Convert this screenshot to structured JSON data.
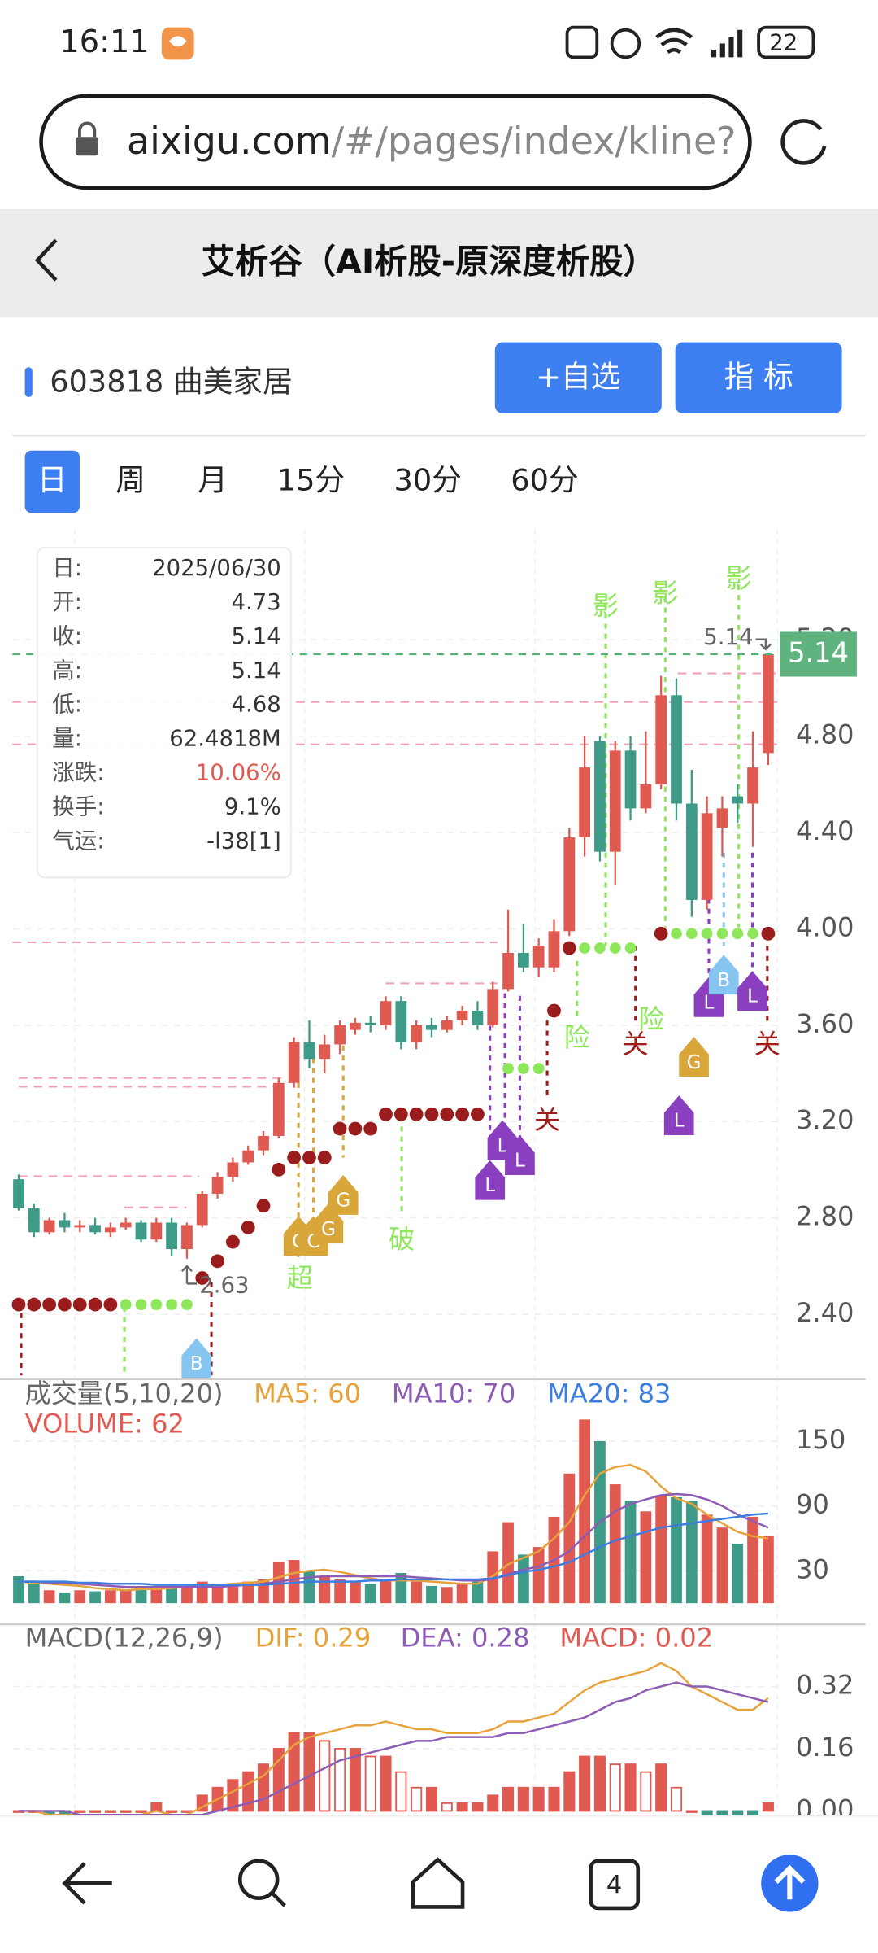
{
  "status_bar": {
    "time": "16:11",
    "battery": "22"
  },
  "browser": {
    "url_host": "aixigu.com",
    "url_path": "/#/pages/index/kline?",
    "tab_count": "4"
  },
  "header": {
    "title": "艾析谷（AI析股-原深度析股）"
  },
  "stock": {
    "name": "603818 曲美家居",
    "buttons": [
      "+自选",
      "指 标"
    ]
  },
  "periods": {
    "items": [
      "日",
      "周",
      "月",
      "15分",
      "30分",
      "60分"
    ]
  },
  "tooltip": {
    "rows": [
      {
        "label": "日:",
        "value": "2025/06/30"
      },
      {
        "label": "开:",
        "value": "4.73"
      },
      {
        "label": "收:",
        "value": "5.14"
      },
      {
        "label": "高:",
        "value": "5.14"
      },
      {
        "label": "低:",
        "value": "4.68"
      },
      {
        "label": "量:",
        "value": "62.4818M"
      },
      {
        "label": "涨跌:",
        "value": "10.06%"
      },
      {
        "label": "换手:",
        "value": "9.1%"
      },
      {
        "label": "气运:",
        "value": "-l38[1]"
      }
    ]
  },
  "chart_data": [
    {
      "type": "candlestick",
      "up_color": "#e05a52",
      "down_color": "#3d9b87",
      "open": [
        2.96,
        2.84,
        2.74,
        2.79,
        2.76,
        2.77,
        2.74,
        2.76,
        2.78,
        2.71,
        2.78,
        2.67,
        2.77,
        2.9,
        2.97,
        3.03,
        3.08,
        3.14,
        3.36,
        3.53,
        3.46,
        3.52,
        3.58,
        3.61,
        3.6,
        3.7,
        3.53,
        3.6,
        3.58,
        3.62,
        3.66,
        3.6,
        3.75,
        3.9,
        3.84,
        3.84,
        3.99,
        4.38,
        4.78,
        4.32,
        4.74,
        4.5,
        4.6,
        4.97,
        4.52,
        4.12,
        4.42,
        4.55,
        4.52,
        4.73
      ],
      "high": [
        2.98,
        2.86,
        2.8,
        2.82,
        2.79,
        2.8,
        2.78,
        2.8,
        2.79,
        2.8,
        2.8,
        2.78,
        2.91,
        2.99,
        3.05,
        3.1,
        3.16,
        3.38,
        3.55,
        3.62,
        3.56,
        3.62,
        3.63,
        3.64,
        3.72,
        3.72,
        3.62,
        3.63,
        3.64,
        3.68,
        3.7,
        3.78,
        4.08,
        4.02,
        3.96,
        4.04,
        4.42,
        4.8,
        4.8,
        4.78,
        4.8,
        4.82,
        5.05,
        5.04,
        4.66,
        4.55,
        4.55,
        4.6,
        4.82,
        5.14
      ],
      "low": [
        2.83,
        2.72,
        2.73,
        2.74,
        2.74,
        2.73,
        2.72,
        2.75,
        2.7,
        2.7,
        2.64,
        2.63,
        2.76,
        2.88,
        2.95,
        3.02,
        3.06,
        3.13,
        3.34,
        3.42,
        3.4,
        3.48,
        3.56,
        3.57,
        3.58,
        3.5,
        3.5,
        3.55,
        3.57,
        3.6,
        3.58,
        3.59,
        3.74,
        3.82,
        3.8,
        3.82,
        3.97,
        4.3,
        4.28,
        4.18,
        4.45,
        4.48,
        4.58,
        4.45,
        4.05,
        4.08,
        4.3,
        4.44,
        4.34,
        4.68
      ],
      "close": [
        2.84,
        2.74,
        2.79,
        2.76,
        2.77,
        2.74,
        2.76,
        2.78,
        2.71,
        2.78,
        2.67,
        2.77,
        2.9,
        2.97,
        3.03,
        3.08,
        3.14,
        3.36,
        3.53,
        3.46,
        3.52,
        3.6,
        3.61,
        3.6,
        3.7,
        3.53,
        3.6,
        3.58,
        3.62,
        3.66,
        3.6,
        3.75,
        3.9,
        3.84,
        3.93,
        3.99,
        4.38,
        4.67,
        4.32,
        4.74,
        4.5,
        4.6,
        4.97,
        4.52,
        4.12,
        4.48,
        4.5,
        4.52,
        4.67,
        5.14
      ],
      "ylim": [
        2.13,
        5.66
      ],
      "yticks": [
        {
          "value": 2.4,
          "label": "2.40"
        },
        {
          "value": 2.8,
          "label": "2.80"
        },
        {
          "value": 3.2,
          "label": "3.20"
        },
        {
          "value": 3.6,
          "label": "3.60"
        },
        {
          "value": 4,
          "label": "4.00"
        },
        {
          "value": 4.4,
          "label": "4.40"
        },
        {
          "value": 4.8,
          "label": "4.80"
        },
        {
          "value": 5.2,
          "label": "5.20"
        }
      ],
      "grid": true,
      "trail_red": [
        2.44,
        2.44,
        2.44,
        2.44,
        2.44,
        2.44,
        2.44,
        null,
        null,
        null,
        null,
        null,
        2.55,
        2.62,
        2.7,
        2.76,
        2.85,
        3.0,
        3.05,
        3.05,
        3.05,
        3.17,
        3.17,
        3.17,
        3.23,
        3.23,
        3.23,
        3.23,
        3.23,
        3.23,
        3.23,
        null,
        null,
        null,
        null,
        3.66,
        3.92,
        null,
        null,
        null,
        null,
        null,
        3.98,
        null,
        null,
        null,
        null,
        null,
        null,
        3.98
      ],
      "trail_green": [
        null,
        null,
        null,
        null,
        null,
        null,
        null,
        2.44,
        2.44,
        2.44,
        2.44,
        2.44,
        null,
        null,
        null,
        null,
        null,
        null,
        null,
        null,
        null,
        null,
        null,
        null,
        null,
        null,
        null,
        null,
        null,
        null,
        null,
        null,
        3.42,
        3.42,
        3.42,
        null,
        null,
        3.92,
        3.92,
        3.92,
        3.92,
        null,
        null,
        3.98,
        3.98,
        3.98,
        3.98,
        3.98,
        3.98,
        null
      ],
      "trail_colors": [
        "#9b1c1c",
        "#8ee65a"
      ],
      "signals": [
        "超",
        "破",
        "险",
        "关",
        "关",
        "险",
        "影",
        "影",
        "影",
        "关"
      ],
      "badges": [
        "B",
        "C",
        "C",
        "G",
        "G",
        "L",
        "L",
        "L",
        "G",
        "L",
        "B",
        "L",
        "L"
      ]
    },
    {
      "type": "bar",
      "title": "成交量(5,10,20)",
      "value_label": "VOLUME: 62",
      "values": [
        25,
        18,
        12,
        10,
        12,
        11,
        12,
        13,
        15,
        14,
        16,
        15,
        20,
        18,
        18,
        20,
        22,
        38,
        40,
        30,
        25,
        22,
        20,
        18,
        22,
        28,
        20,
        16,
        15,
        18,
        20,
        48,
        75,
        45,
        52,
        80,
        120,
        170,
        150,
        110,
        95,
        85,
        100,
        98,
        95,
        82,
        70,
        55,
        80,
        62
      ],
      "series": [
        {
          "name": "MA5: 60",
          "color": "#e8a23a",
          "values": [
            20,
            19,
            18,
            17,
            16,
            14,
            13,
            12,
            13,
            13,
            14,
            15,
            16,
            17,
            18,
            19,
            20,
            24,
            28,
            30,
            31,
            29,
            26,
            23,
            21,
            21,
            21,
            20,
            19,
            18,
            18,
            25,
            36,
            42,
            48,
            60,
            75,
            100,
            120,
            126,
            128,
            122,
            108,
            97,
            92,
            82,
            74,
            66,
            62,
            60
          ]
        },
        {
          "name": "MA10: 70",
          "color": "#8d5cb6",
          "values": [
            20,
            20,
            19,
            19,
            18,
            17,
            16,
            15,
            15,
            15,
            15,
            15,
            15,
            15,
            16,
            17,
            18,
            20,
            22,
            24,
            25,
            25,
            25,
            25,
            25,
            25,
            24,
            23,
            22,
            21,
            21,
            22,
            27,
            31,
            34,
            40,
            48,
            62,
            75,
            85,
            92,
            96,
            100,
            101,
            100,
            96,
            90,
            82,
            76,
            70
          ]
        },
        {
          "name": "MA20: 83",
          "color": "#3b7de0",
          "values": [
            20,
            20,
            20,
            20,
            19,
            19,
            18,
            18,
            18,
            17,
            17,
            17,
            17,
            17,
            17,
            17,
            17,
            18,
            19,
            20,
            20,
            20,
            20,
            21,
            21,
            22,
            22,
            22,
            22,
            22,
            22,
            23,
            26,
            29,
            31,
            34,
            38,
            45,
            52,
            58,
            62,
            66,
            70,
            72,
            74,
            76,
            78,
            80,
            82,
            83
          ]
        }
      ],
      "ylim": [
        0,
        205
      ],
      "yticks": [
        30,
        90,
        150
      ]
    },
    {
      "type": "macd",
      "title": "MACD(12,26,9)",
      "series": [
        {
          "name": "DIF: 0.29",
          "color": "#e8a23a",
          "values": [
            0,
            0,
            -0.01,
            -0.01,
            -0.01,
            -0.01,
            -0.01,
            -0.01,
            -0.01,
            0,
            -0.01,
            -0.01,
            0.01,
            0.03,
            0.05,
            0.07,
            0.09,
            0.13,
            0.17,
            0.19,
            0.2,
            0.21,
            0.22,
            0.22,
            0.23,
            0.22,
            0.21,
            0.21,
            0.2,
            0.2,
            0.2,
            0.21,
            0.23,
            0.23,
            0.24,
            0.25,
            0.28,
            0.31,
            0.33,
            0.34,
            0.35,
            0.36,
            0.38,
            0.36,
            0.32,
            0.3,
            0.28,
            0.26,
            0.26,
            0.29
          ]
        },
        {
          "name": "DEA: 0.28",
          "color": "#8d5cb6",
          "values": [
            0,
            0,
            0,
            0,
            -0.01,
            -0.01,
            -0.01,
            -0.01,
            -0.01,
            -0.01,
            -0.01,
            -0.01,
            -0.01,
            0,
            0.01,
            0.02,
            0.03,
            0.05,
            0.07,
            0.09,
            0.11,
            0.13,
            0.14,
            0.15,
            0.16,
            0.17,
            0.18,
            0.18,
            0.19,
            0.19,
            0.19,
            0.19,
            0.2,
            0.2,
            0.21,
            0.22,
            0.23,
            0.24,
            0.26,
            0.28,
            0.29,
            0.31,
            0.32,
            0.33,
            0.32,
            0.32,
            0.31,
            0.3,
            0.29,
            0.28
          ]
        },
        {
          "name": "MACD: 0.02",
          "color": "#e05a52",
          "values": [
            0,
            0,
            -0.02,
            -0.02,
            0,
            0,
            0,
            0,
            0,
            0.02,
            0,
            0,
            0.04,
            0.06,
            0.08,
            0.1,
            0.12,
            0.16,
            0.2,
            0.2,
            0.18,
            0.16,
            0.16,
            0.14,
            0.14,
            0.1,
            0.06,
            0.06,
            0.02,
            0.02,
            0.02,
            0.04,
            0.06,
            0.06,
            0.06,
            0.06,
            0.1,
            0.14,
            0.14,
            0.12,
            0.12,
            0.1,
            0.12,
            0.06,
            0,
            -0.04,
            -0.06,
            -0.08,
            -0.06,
            0.02
          ]
        }
      ],
      "ylim": [
        -0.01,
        0.47
      ],
      "yticks": [
        {
          "value": 0,
          "label": "0.00"
        },
        {
          "value": 0.16,
          "label": "0.16"
        },
        {
          "value": 0.32,
          "label": "0.32"
        }
      ]
    }
  ]
}
